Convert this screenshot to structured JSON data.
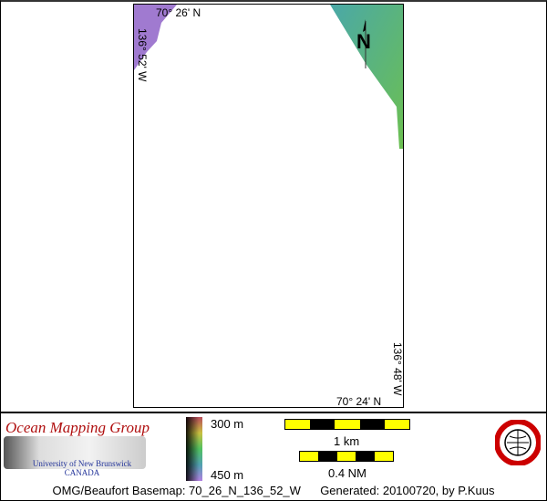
{
  "map": {
    "lat_top": "70° 26' N",
    "lat_bottom": "70° 24' N",
    "lon_left": "136° 52' W",
    "lon_right": "136° 48' W",
    "north_arrow": "N",
    "colors": {
      "shallow": "#60c080",
      "deep": "#a080d0"
    }
  },
  "legend": {
    "depth_min": "300 m",
    "depth_max": "450 m",
    "scale_km": "1 km",
    "scale_nm": "0.4 NM"
  },
  "logo": {
    "title": "Ocean Mapping Group",
    "university": "University of New Brunswick",
    "country": "CANADA",
    "seal": "UNB Geodesy and Geomatics Engineering"
  },
  "footer": {
    "basemap": "OMG/Beaufort Basemap: 70_26_N_136_52_W",
    "generated": "Generated: 20100720, by P.Kuus"
  }
}
